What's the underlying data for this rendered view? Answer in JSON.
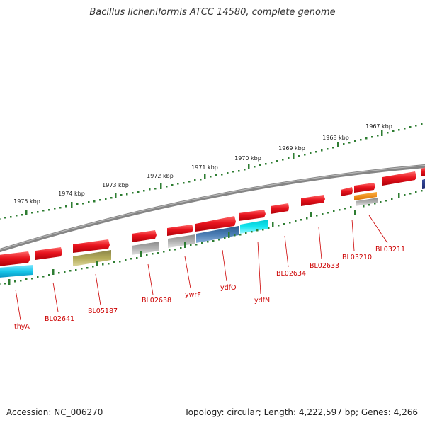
{
  "title": "Bacillus licheniformis ATCC 14580, complete genome",
  "footer": {
    "accession": "Accession: NC_006270",
    "topology": "Topology: circular; Length: 4,222,597 bp; Genes: 4,266"
  },
  "colors": {
    "backbone": "#808080",
    "tick": "#2e7d32",
    "label": "#cc0000",
    "gene_red": "#e8141e",
    "cyan": "#19c8ea",
    "olive": "#b4ac5a",
    "gray": "#b0b0b0",
    "steel": "#4a7db4",
    "aqua": "#14e6f0",
    "orange": "#f08c14",
    "navy": "#283c8c"
  },
  "kbp_labels": [
    "1975 kbp",
    "1974 kbp",
    "1973 kbp",
    "1972 kbp",
    "1971 kbp",
    "1970 kbp",
    "1969 kbp",
    "1968 kbp",
    "1967 kbp"
  ],
  "gene_labels": [
    "thyA",
    "BL02641",
    "BL05187",
    "BL02638",
    "ywrF",
    "ydfO",
    "ydfN",
    "BL02634",
    "BL02633",
    "BL03210",
    "BL03211"
  ]
}
